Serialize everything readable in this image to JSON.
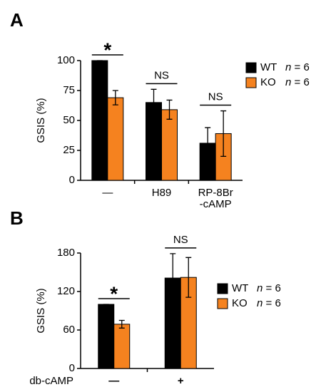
{
  "chart_data": [
    {
      "type": "bar",
      "panel": "A",
      "ylabel": "GSIS (%)",
      "categories": [
        "—",
        "H89",
        "RP-8Br\n-cAMP"
      ],
      "series": [
        {
          "name": "WT",
          "legend_note": "n = 6",
          "color": "#000000",
          "values": [
            100,
            65,
            31
          ],
          "errors": [
            0,
            11,
            13
          ]
        },
        {
          "name": "KO",
          "legend_note": "n = 6",
          "color": "#f5821f",
          "values": [
            69,
            59,
            39
          ],
          "errors": [
            6,
            8,
            19
          ]
        }
      ],
      "significance": [
        "*",
        "NS",
        "NS"
      ],
      "ylim": [
        0,
        100
      ],
      "yticks": [
        0,
        25,
        50,
        75,
        100
      ]
    },
    {
      "type": "bar",
      "panel": "B",
      "ylabel": "GSIS (%)",
      "xlabel": "db-cAMP",
      "categories": [
        "—",
        "+"
      ],
      "series": [
        {
          "name": "WT",
          "legend_note": "n = 6",
          "color": "#000000",
          "values": [
            100,
            141
          ],
          "errors": [
            0,
            38
          ]
        },
        {
          "name": "KO",
          "legend_note": "n = 6",
          "color": "#f5821f",
          "values": [
            69,
            142
          ],
          "errors": [
            6,
            31
          ]
        }
      ],
      "significance": [
        "*",
        "NS"
      ],
      "ylim": [
        0,
        180
      ],
      "yticks": [
        0,
        60,
        120,
        180
      ]
    }
  ]
}
